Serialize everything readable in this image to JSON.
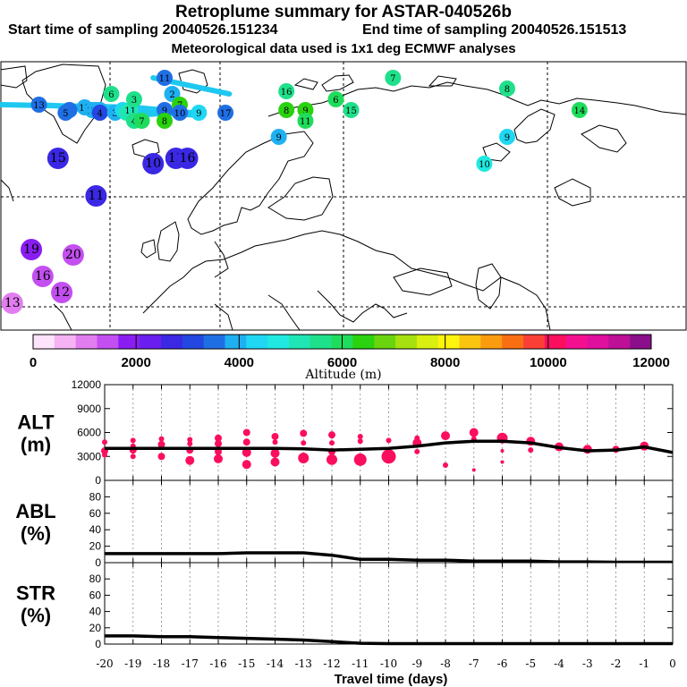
{
  "header": {
    "title": "Retroplume summary for ASTAR-040526b",
    "start_label": "Start time of sampling 20040526.151234",
    "end_label": "End time of sampling 20040526.151513",
    "met_label": "Meteorological data used is 1x1 deg ECMWF analyses"
  },
  "colorbar": {
    "colors": [
      "#fde3fb",
      "#f5b3f4",
      "#e27df0",
      "#c34ff0",
      "#8a1ef2",
      "#6a1eef",
      "#3a28e5",
      "#2347e0",
      "#1f6fe4",
      "#1fb0f1",
      "#1fd7f3",
      "#1fe9e0",
      "#1fe6b4",
      "#1fe08a",
      "#1fdc5c",
      "#2ad20f",
      "#6ad40f",
      "#a6e00f",
      "#d8ef10",
      "#fff40f",
      "#fbc40f",
      "#fb9b10",
      "#fb6f13",
      "#fb3f36",
      "#fb0e5d",
      "#f40f91",
      "#e00f9e",
      "#be0f97",
      "#8b0f8a"
    ],
    "tick_values": [
      "0",
      "2000",
      "4000",
      "6000",
      "8000",
      "10000",
      "12000"
    ],
    "label": "Altitude (m)"
  },
  "map": {
    "plume_color": "#1ec8f0",
    "centroids": [
      {
        "label": "13",
        "lon": -30,
        "lat": 72,
        "alt": 3700
      },
      {
        "label": "15",
        "lon": -18,
        "lat": 71.5,
        "alt": 3800
      },
      {
        "label": "14",
        "lon": -16,
        "lat": 71,
        "alt": 3900
      },
      {
        "label": "13",
        "lon": -15,
        "lat": 71,
        "alt": 4000
      },
      {
        "label": "12",
        "lon": -14,
        "lat": 71,
        "alt": 4100
      },
      {
        "label": "4",
        "lon": -22,
        "lat": 71,
        "alt": 3500
      },
      {
        "label": "5",
        "lon": -23,
        "lat": 70.5,
        "alt": 3500
      },
      {
        "label": "4",
        "lon": -14,
        "lat": 70.5,
        "alt": 3200
      },
      {
        "label": "3",
        "lon": -10,
        "lat": 70.5,
        "alt": 4000
      },
      {
        "label": "2",
        "lon": -8,
        "lat": 71,
        "alt": 4200
      },
      {
        "label": "1",
        "lon": -7,
        "lat": 70.5,
        "alt": 5100
      },
      {
        "label": "11",
        "lon": -6,
        "lat": 71,
        "alt": 5200
      },
      {
        "label": "3",
        "lon": -5,
        "lat": 73,
        "alt": 5600
      },
      {
        "label": "6",
        "lon": -11,
        "lat": 74,
        "alt": 5700
      },
      {
        "label": "4",
        "lon": -5,
        "lat": 69,
        "alt": 5700
      },
      {
        "label": "7",
        "lon": -3,
        "lat": 69,
        "alt": 5900
      },
      {
        "label": "11",
        "lon": 3,
        "lat": 77,
        "alt": 3500
      },
      {
        "label": "2",
        "lon": 5,
        "lat": 74,
        "alt": 3900
      },
      {
        "label": "7",
        "lon": 7,
        "lat": 72,
        "alt": 6300
      },
      {
        "label": "9",
        "lon": 3,
        "lat": 71,
        "alt": 3700
      },
      {
        "label": "8",
        "lon": 3,
        "lat": 69,
        "alt": 6500
      },
      {
        "label": "10",
        "lon": 7,
        "lat": 70.5,
        "alt": 3500
      },
      {
        "label": "9",
        "lon": 12,
        "lat": 70.5,
        "alt": 4200
      },
      {
        "label": "17",
        "lon": 19,
        "lat": 70.5,
        "alt": 3600
      },
      {
        "label": "16",
        "lon": 35,
        "lat": 74.5,
        "alt": 5400
      },
      {
        "label": "8",
        "lon": 35,
        "lat": 71,
        "alt": 6400
      },
      {
        "label": "9",
        "lon": 40,
        "lat": 71,
        "alt": 6400
      },
      {
        "label": "11",
        "lon": 40,
        "lat": 69,
        "alt": 5900
      },
      {
        "label": "15",
        "lon": 52,
        "lat": 71,
        "alt": 5500
      },
      {
        "label": "6",
        "lon": 48,
        "lat": 73,
        "alt": 5800
      },
      {
        "label": "7",
        "lon": 63,
        "lat": 77,
        "alt": 5500
      },
      {
        "label": "8",
        "lon": 93,
        "lat": 75,
        "alt": 5600
      },
      {
        "label": "14",
        "lon": 112,
        "lat": 71,
        "alt": 5800
      },
      {
        "label": "9",
        "lon": 93,
        "lat": 66,
        "alt": 4500
      },
      {
        "label": "10",
        "lon": 87,
        "lat": 61,
        "alt": 4800
      },
      {
        "label": "9",
        "lon": 33,
        "lat": 66,
        "alt": 4100
      },
      {
        "label": "10",
        "lon": 0,
        "lat": 61,
        "alt": 2800
      },
      {
        "label": "13",
        "lon": 6,
        "lat": 62,
        "alt": 2600
      },
      {
        "label": "16",
        "lon": 9,
        "lat": 62,
        "alt": 2600
      },
      {
        "label": "15",
        "lon": -25,
        "lat": 62,
        "alt": 2500
      },
      {
        "label": "11",
        "lon": -15,
        "lat": 55,
        "alt": 2500
      },
      {
        "label": "19",
        "lon": -32,
        "lat": 45,
        "alt": 1700
      },
      {
        "label": "20",
        "lon": -21,
        "lat": 44,
        "alt": 1500
      },
      {
        "label": "16",
        "lon": -29,
        "lat": 40,
        "alt": 1500
      },
      {
        "label": "12",
        "lon": -24,
        "lat": 37,
        "alt": 1300
      },
      {
        "label": "13",
        "lon": -37,
        "lat": 35,
        "alt": 1200
      }
    ]
  },
  "chart_data": [
    {
      "type": "line",
      "panel": "ALT",
      "ylabel": "ALT\n(m)",
      "ylim": [
        0,
        12000
      ],
      "yticks": [
        0,
        3000,
        6000,
        9000,
        12000
      ],
      "xlim": [
        -20,
        0
      ],
      "xticks": [
        -20,
        -19,
        -18,
        -17,
        -16,
        -15,
        -14,
        -13,
        -12,
        -11,
        -10,
        -9,
        -8,
        -7,
        -6,
        -5,
        -4,
        -3,
        -2,
        -1,
        0
      ],
      "xlabel": "Travel time (days)",
      "series": [
        {
          "name": "mean altitude",
          "x": [
            -20,
            -19,
            -18,
            -17,
            -16,
            -15,
            -14,
            -13,
            -12,
            -11,
            -10,
            -9,
            -8,
            -7,
            -6,
            -5,
            -4,
            -3,
            -2,
            -1,
            0
          ],
          "values": [
            4000,
            4000,
            4000,
            4000,
            4000,
            4000,
            4000,
            3950,
            3800,
            3900,
            4000,
            4300,
            4700,
            4900,
            4900,
            4700,
            4100,
            3700,
            3800,
            4200,
            3500
          ]
        },
        {
          "name": "plume clusters",
          "points": [
            {
              "x": -20,
              "y": 4800,
              "s": 3
            },
            {
              "x": -20,
              "y": 3700,
              "s": 4
            },
            {
              "x": -20,
              "y": 3200,
              "s": 3
            },
            {
              "x": -19,
              "y": 5000,
              "s": 3
            },
            {
              "x": -19,
              "y": 4300,
              "s": 3
            },
            {
              "x": -19,
              "y": 3800,
              "s": 4
            },
            {
              "x": -19,
              "y": 3000,
              "s": 3
            },
            {
              "x": -18,
              "y": 5200,
              "s": 3
            },
            {
              "x": -18,
              "y": 4500,
              "s": 4
            },
            {
              "x": -18,
              "y": 3000,
              "s": 4
            },
            {
              "x": -17,
              "y": 5100,
              "s": 3
            },
            {
              "x": -17,
              "y": 4600,
              "s": 3
            },
            {
              "x": -17,
              "y": 3800,
              "s": 4
            },
            {
              "x": -17,
              "y": 2500,
              "s": 5
            },
            {
              "x": -16,
              "y": 5300,
              "s": 4
            },
            {
              "x": -16,
              "y": 4600,
              "s": 4
            },
            {
              "x": -16,
              "y": 3600,
              "s": 4
            },
            {
              "x": -16,
              "y": 2700,
              "s": 5
            },
            {
              "x": -15,
              "y": 6000,
              "s": 4
            },
            {
              "x": -15,
              "y": 4800,
              "s": 4
            },
            {
              "x": -15,
              "y": 3500,
              "s": 5
            },
            {
              "x": -15,
              "y": 2000,
              "s": 5
            },
            {
              "x": -14,
              "y": 5500,
              "s": 4
            },
            {
              "x": -14,
              "y": 4800,
              "s": 3
            },
            {
              "x": -14,
              "y": 3400,
              "s": 5
            },
            {
              "x": -14,
              "y": 2300,
              "s": 5
            },
            {
              "x": -13,
              "y": 5900,
              "s": 4
            },
            {
              "x": -13,
              "y": 4700,
              "s": 3
            },
            {
              "x": -13,
              "y": 2800,
              "s": 6
            },
            {
              "x": -12,
              "y": 5700,
              "s": 4
            },
            {
              "x": -12,
              "y": 4700,
              "s": 3
            },
            {
              "x": -12,
              "y": 3600,
              "s": 4
            },
            {
              "x": -12,
              "y": 2600,
              "s": 6
            },
            {
              "x": -11,
              "y": 5500,
              "s": 3
            },
            {
              "x": -11,
              "y": 4900,
              "s": 3
            },
            {
              "x": -11,
              "y": 2600,
              "s": 7
            },
            {
              "x": -10,
              "y": 3000,
              "s": 8
            },
            {
              "x": -10,
              "y": 5000,
              "s": 3
            },
            {
              "x": -9,
              "y": 5300,
              "s": 3
            },
            {
              "x": -9,
              "y": 4700,
              "s": 5
            },
            {
              "x": -9,
              "y": 3600,
              "s": 3
            },
            {
              "x": -8,
              "y": 5600,
              "s": 5
            },
            {
              "x": -8,
              "y": 1900,
              "s": 3
            },
            {
              "x": -7,
              "y": 6000,
              "s": 5
            },
            {
              "x": -7,
              "y": 5200,
              "s": 3
            },
            {
              "x": -7,
              "y": 1300,
              "s": 2
            },
            {
              "x": -6,
              "y": 5300,
              "s": 6
            },
            {
              "x": -6,
              "y": 3700,
              "s": 2
            },
            {
              "x": -6,
              "y": 2300,
              "s": 2
            },
            {
              "x": -5,
              "y": 4900,
              "s": 5
            },
            {
              "x": -5,
              "y": 3800,
              "s": 3
            },
            {
              "x": -4,
              "y": 4200,
              "s": 5
            },
            {
              "x": -3,
              "y": 3900,
              "s": 5
            },
            {
              "x": -2,
              "y": 3900,
              "s": 4
            },
            {
              "x": -1,
              "y": 4300,
              "s": 5
            }
          ]
        }
      ]
    },
    {
      "type": "line",
      "panel": "ABL",
      "ylabel": "ABL\n(%)",
      "ylim": [
        0,
        100
      ],
      "yticks": [
        0,
        20,
        40,
        60,
        80
      ],
      "xlim": [
        -20,
        0
      ],
      "series": [
        {
          "name": "ABL fraction",
          "x": [
            -20,
            -19,
            -18,
            -17,
            -16,
            -15,
            -14,
            -13,
            -12,
            -11,
            -10,
            -9,
            -8,
            -7,
            -6,
            -5,
            -4,
            -3,
            -2,
            -1,
            0
          ],
          "values": [
            11,
            11,
            11,
            11,
            11,
            12,
            12,
            12,
            9,
            4,
            4,
            3,
            3,
            2,
            2,
            2,
            1,
            1,
            0.5,
            0.5,
            0.5
          ]
        }
      ]
    },
    {
      "type": "line",
      "panel": "STR",
      "ylabel": "STR\n(%)",
      "ylim": [
        0,
        100
      ],
      "yticks": [
        0,
        20,
        40,
        60,
        80
      ],
      "xlim": [
        -20,
        0
      ],
      "series": [
        {
          "name": "stratospheric fraction",
          "x": [
            -20,
            -19,
            -18,
            -17,
            -16,
            -15,
            -14,
            -13,
            -12,
            -11,
            -10,
            -9,
            -8,
            -7,
            -6,
            -5,
            -4,
            -3,
            -2,
            -1,
            0
          ],
          "values": [
            10,
            10,
            9,
            9,
            8,
            7,
            6,
            5,
            3,
            1,
            0.5,
            0.5,
            0.5,
            0.5,
            0.5,
            0.5,
            0.5,
            0.5,
            0.5,
            0.5,
            0.5
          ]
        }
      ]
    }
  ]
}
